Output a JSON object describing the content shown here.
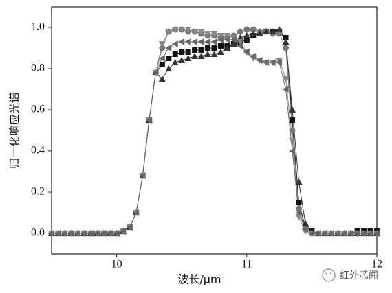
{
  "chart_data": {
    "type": "line",
    "xlabel": "波长/μm",
    "ylabel": "归一化响应光谱",
    "annotation": "红外芯闻",
    "x": [
      9.5,
      9.55,
      9.6,
      9.65,
      9.7,
      9.75,
      9.8,
      9.85,
      9.9,
      9.95,
      10.0,
      10.05,
      10.1,
      10.15,
      10.2,
      10.25,
      10.3,
      10.35,
      10.4,
      10.45,
      10.5,
      10.55,
      10.6,
      10.65,
      10.7,
      10.75,
      10.8,
      10.85,
      10.9,
      10.95,
      11.0,
      11.05,
      11.1,
      11.15,
      11.2,
      11.25,
      11.3,
      11.35,
      11.4,
      11.45,
      11.5,
      11.55,
      11.6,
      11.65,
      11.7,
      11.75,
      11.8,
      11.85,
      11.9,
      11.95,
      12.0
    ],
    "series": [
      {
        "color": "#111111",
        "marker": "square",
        "values": [
          0,
          0,
          0,
          0,
          0,
          0,
          0,
          0,
          0,
          0,
          0,
          0.01,
          0.03,
          0.1,
          0.28,
          0.55,
          0.78,
          0.82,
          0.85,
          0.87,
          0.88,
          0.88,
          0.89,
          0.89,
          0.9,
          0.9,
          0.91,
          0.91,
          0.92,
          0.93,
          0.94,
          0.96,
          0.97,
          0.98,
          0.98,
          0.98,
          0.95,
          0.55,
          0.15,
          0.03,
          0.01,
          0,
          0,
          0,
          0,
          0,
          0,
          0.01,
          0.01,
          0.01,
          0.01
        ]
      },
      {
        "color": "#777777",
        "marker": "circle",
        "values": [
          0,
          0,
          0,
          0,
          0,
          0,
          0,
          0,
          0,
          0,
          0,
          0.01,
          0.03,
          0.1,
          0.28,
          0.55,
          0.78,
          0.9,
          0.98,
          0.99,
          0.99,
          0.98,
          0.98,
          0.97,
          0.96,
          0.96,
          0.95,
          0.95,
          0.96,
          0.98,
          0.99,
          0.99,
          0.98,
          0.98,
          0.97,
          0.97,
          0.9,
          0.5,
          0.12,
          0.02,
          0,
          0,
          0,
          0,
          0,
          0,
          0,
          0,
          0,
          0,
          0
        ]
      },
      {
        "color": "#333333",
        "marker": "triangle-up",
        "values": [
          0,
          0,
          0,
          0,
          0,
          0,
          0,
          0,
          0,
          0,
          0,
          0.01,
          0.03,
          0.1,
          0.28,
          0.55,
          0.78,
          0.75,
          0.8,
          0.83,
          0.84,
          0.85,
          0.86,
          0.86,
          0.87,
          0.87,
          0.88,
          0.9,
          0.92,
          0.95,
          0.96,
          0.97,
          0.97,
          0.98,
          0.98,
          0.99,
          0.93,
          0.6,
          0.25,
          0.05,
          0.01,
          0,
          0,
          0,
          0,
          0,
          0,
          0,
          0,
          0,
          0
        ]
      },
      {
        "color": "#888888",
        "marker": "triangle-down",
        "values": [
          0,
          0,
          0,
          0,
          0,
          0,
          0,
          0,
          0,
          0,
          0,
          0.01,
          0.03,
          0.1,
          0.28,
          0.55,
          0.78,
          0.92,
          0.98,
          0.99,
          0.99,
          0.99,
          0.98,
          0.98,
          0.97,
          0.97,
          0.96,
          0.96,
          0.95,
          0.93,
          0.88,
          0.85,
          0.84,
          0.83,
          0.83,
          0.84,
          0.75,
          0.45,
          0.08,
          0.01,
          0,
          0,
          0,
          0,
          0,
          0,
          0,
          0,
          0,
          0,
          0
        ]
      },
      {
        "color": "#666666",
        "marker": "triangle-left",
        "values": [
          0,
          0,
          0,
          0,
          0,
          0,
          0,
          0,
          0,
          0,
          0,
          0.01,
          0.03,
          0.1,
          0.28,
          0.55,
          0.78,
          0.85,
          0.9,
          0.92,
          0.93,
          0.93,
          0.93,
          0.93,
          0.93,
          0.93,
          0.94,
          0.94,
          0.94,
          0.91,
          0.88,
          0.86,
          0.84,
          0.83,
          0.83,
          0.83,
          0.7,
          0.4,
          0.1,
          0.02,
          0,
          0,
          0,
          0,
          0,
          0,
          0,
          0,
          0,
          0,
          0
        ]
      }
    ],
    "xlim": [
      9.5,
      12
    ],
    "xticks": [
      10,
      11,
      12
    ],
    "ylim": [
      -0.1,
      1.1
    ],
    "yticks": [
      {
        "value": 0,
        "label": "0.0"
      },
      0.2,
      0.4,
      0.6,
      0.8,
      {
        "value": 1,
        "label": "1.0"
      }
    ]
  }
}
